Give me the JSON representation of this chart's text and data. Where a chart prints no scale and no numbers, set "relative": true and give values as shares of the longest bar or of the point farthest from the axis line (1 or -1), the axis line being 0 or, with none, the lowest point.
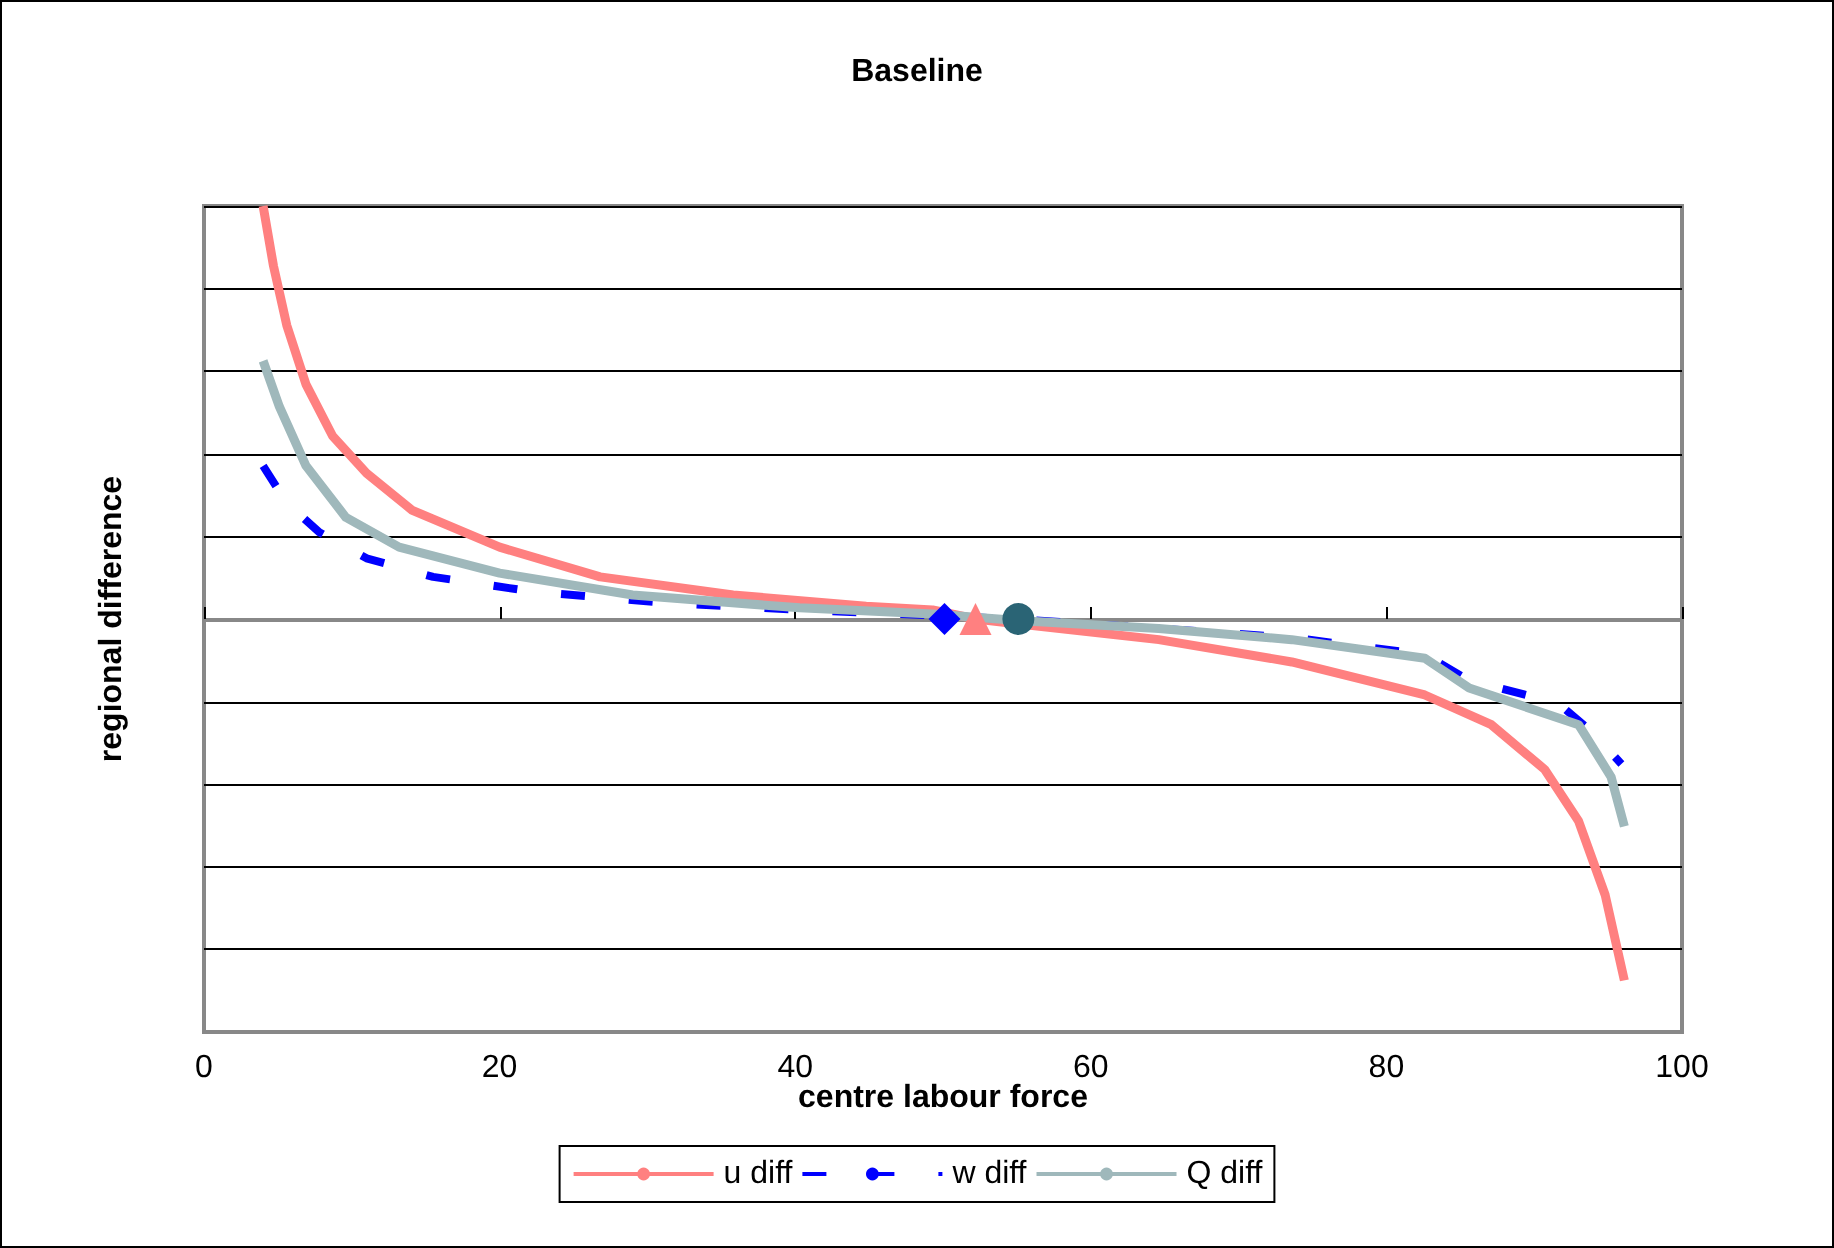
{
  "chart_data": {
    "type": "line",
    "title": "Baseline",
    "xlabel": "centre labour force",
    "ylabel": "regional difference",
    "relative": true,
    "xlim": [
      0,
      100
    ],
    "xticks": [
      0,
      20,
      40,
      60,
      80,
      100
    ],
    "grid": "y",
    "legend": "bottom",
    "marker": "none",
    "series": [
      {
        "name": "u diff",
        "color": "#ff8080",
        "line_style": "solid",
        "x": [
          4.0,
          4.7,
          5.6,
          6.9,
          8.7,
          11.0,
          14.1,
          20.0,
          26.8,
          35.8,
          44.8,
          49.3,
          52.2,
          55.6,
          64.6,
          73.6,
          82.6,
          87.1,
          90.7,
          93.0,
          94.8,
          96.1
        ],
        "values": [
          1.0,
          0.855,
          0.711,
          0.568,
          0.443,
          0.353,
          0.263,
          0.174,
          0.102,
          0.058,
          0.031,
          0.022,
          0,
          -0.014,
          -0.05,
          -0.104,
          -0.184,
          -0.256,
          -0.364,
          -0.489,
          -0.668,
          -0.875
        ]
      },
      {
        "name": "w diff",
        "color": "#0000ff",
        "line_style": "dashed",
        "x": [
          4.0,
          5.6,
          7.8,
          11.0,
          15.5,
          22.3,
          31.3,
          40.3,
          49.3,
          55.6,
          64.6,
          73.6,
          82.6,
          85.6,
          91.6,
          93.9,
          95.9
        ],
        "values": [
          0.371,
          0.281,
          0.21,
          0.147,
          0.102,
          0.066,
          0.039,
          0.022,
          0.009,
          -0.002,
          -0.023,
          -0.045,
          -0.086,
          -0.149,
          -0.203,
          -0.274,
          -0.351
        ]
      },
      {
        "name": "Q diff",
        "color": "#9fb8bb",
        "line_style": "solid",
        "x": [
          4.0,
          5.1,
          6.9,
          9.6,
          13.2,
          20.0,
          29.0,
          40.3,
          49.3,
          55.6,
          64.6,
          73.6,
          82.6,
          85.6,
          93.0,
          95.2,
          96.1
        ],
        "values": [
          0.625,
          0.514,
          0.371,
          0.246,
          0.174,
          0.111,
          0.058,
          0.027,
          0.012,
          -0.005,
          -0.023,
          -0.05,
          -0.095,
          -0.167,
          -0.256,
          -0.382,
          -0.502
        ]
      },
      {
        "type": "scatter",
        "marker": "diamond",
        "color": "#0000ff",
        "x": [
          50.1
        ],
        "values": [
          0
        ]
      },
      {
        "type": "scatter",
        "marker": "triangle",
        "color": "#ff8080",
        "x": [
          52.2
        ],
        "values": [
          0
        ]
      },
      {
        "type": "scatter",
        "marker": "circle",
        "color": "#2a6475",
        "x": [
          55.1
        ],
        "values": [
          0
        ]
      }
    ]
  }
}
